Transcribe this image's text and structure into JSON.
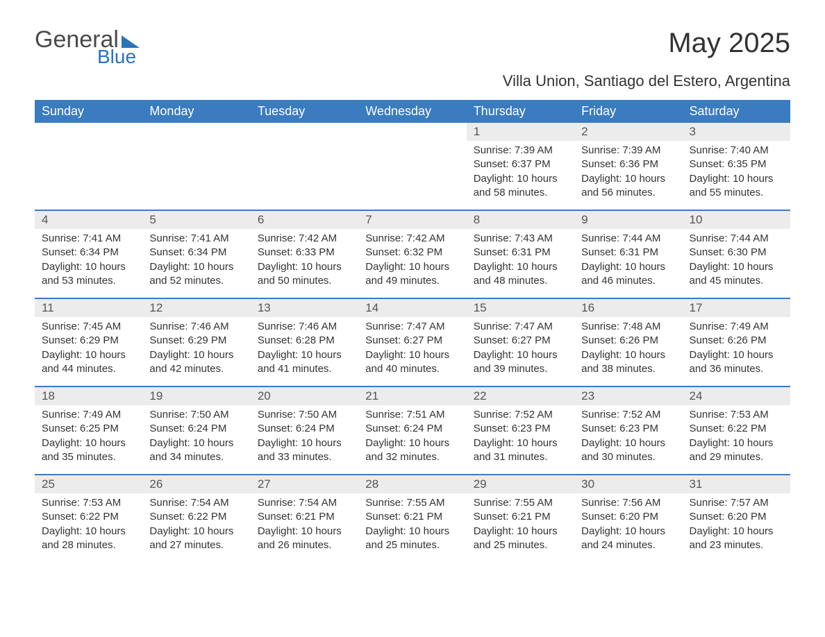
{
  "logo": {
    "word1": "General",
    "word2": "Blue"
  },
  "title": "May 2025",
  "subtitle": "Villa Union, Santiago del Estero, Argentina",
  "colors": {
    "header_bg": "#3b7bbf",
    "header_text": "#ffffff",
    "daynum_bg": "#ececec",
    "border_top": "#3b7bbf",
    "text": "#333333",
    "logo_blue": "#2a73b8",
    "logo_gray": "#4a4a4a",
    "page_bg": "#ffffff"
  },
  "weekdays": [
    "Sunday",
    "Monday",
    "Tuesday",
    "Wednesday",
    "Thursday",
    "Friday",
    "Saturday"
  ],
  "weeks": [
    [
      null,
      null,
      null,
      null,
      {
        "n": "1",
        "sr": "7:39 AM",
        "ss": "6:37 PM",
        "dl": "10 hours and 58 minutes."
      },
      {
        "n": "2",
        "sr": "7:39 AM",
        "ss": "6:36 PM",
        "dl": "10 hours and 56 minutes."
      },
      {
        "n": "3",
        "sr": "7:40 AM",
        "ss": "6:35 PM",
        "dl": "10 hours and 55 minutes."
      }
    ],
    [
      {
        "n": "4",
        "sr": "7:41 AM",
        "ss": "6:34 PM",
        "dl": "10 hours and 53 minutes."
      },
      {
        "n": "5",
        "sr": "7:41 AM",
        "ss": "6:34 PM",
        "dl": "10 hours and 52 minutes."
      },
      {
        "n": "6",
        "sr": "7:42 AM",
        "ss": "6:33 PM",
        "dl": "10 hours and 50 minutes."
      },
      {
        "n": "7",
        "sr": "7:42 AM",
        "ss": "6:32 PM",
        "dl": "10 hours and 49 minutes."
      },
      {
        "n": "8",
        "sr": "7:43 AM",
        "ss": "6:31 PM",
        "dl": "10 hours and 48 minutes."
      },
      {
        "n": "9",
        "sr": "7:44 AM",
        "ss": "6:31 PM",
        "dl": "10 hours and 46 minutes."
      },
      {
        "n": "10",
        "sr": "7:44 AM",
        "ss": "6:30 PM",
        "dl": "10 hours and 45 minutes."
      }
    ],
    [
      {
        "n": "11",
        "sr": "7:45 AM",
        "ss": "6:29 PM",
        "dl": "10 hours and 44 minutes."
      },
      {
        "n": "12",
        "sr": "7:46 AM",
        "ss": "6:29 PM",
        "dl": "10 hours and 42 minutes."
      },
      {
        "n": "13",
        "sr": "7:46 AM",
        "ss": "6:28 PM",
        "dl": "10 hours and 41 minutes."
      },
      {
        "n": "14",
        "sr": "7:47 AM",
        "ss": "6:27 PM",
        "dl": "10 hours and 40 minutes."
      },
      {
        "n": "15",
        "sr": "7:47 AM",
        "ss": "6:27 PM",
        "dl": "10 hours and 39 minutes."
      },
      {
        "n": "16",
        "sr": "7:48 AM",
        "ss": "6:26 PM",
        "dl": "10 hours and 38 minutes."
      },
      {
        "n": "17",
        "sr": "7:49 AM",
        "ss": "6:26 PM",
        "dl": "10 hours and 36 minutes."
      }
    ],
    [
      {
        "n": "18",
        "sr": "7:49 AM",
        "ss": "6:25 PM",
        "dl": "10 hours and 35 minutes."
      },
      {
        "n": "19",
        "sr": "7:50 AM",
        "ss": "6:24 PM",
        "dl": "10 hours and 34 minutes."
      },
      {
        "n": "20",
        "sr": "7:50 AM",
        "ss": "6:24 PM",
        "dl": "10 hours and 33 minutes."
      },
      {
        "n": "21",
        "sr": "7:51 AM",
        "ss": "6:24 PM",
        "dl": "10 hours and 32 minutes."
      },
      {
        "n": "22",
        "sr": "7:52 AM",
        "ss": "6:23 PM",
        "dl": "10 hours and 31 minutes."
      },
      {
        "n": "23",
        "sr": "7:52 AM",
        "ss": "6:23 PM",
        "dl": "10 hours and 30 minutes."
      },
      {
        "n": "24",
        "sr": "7:53 AM",
        "ss": "6:22 PM",
        "dl": "10 hours and 29 minutes."
      }
    ],
    [
      {
        "n": "25",
        "sr": "7:53 AM",
        "ss": "6:22 PM",
        "dl": "10 hours and 28 minutes."
      },
      {
        "n": "26",
        "sr": "7:54 AM",
        "ss": "6:22 PM",
        "dl": "10 hours and 27 minutes."
      },
      {
        "n": "27",
        "sr": "7:54 AM",
        "ss": "6:21 PM",
        "dl": "10 hours and 26 minutes."
      },
      {
        "n": "28",
        "sr": "7:55 AM",
        "ss": "6:21 PM",
        "dl": "10 hours and 25 minutes."
      },
      {
        "n": "29",
        "sr": "7:55 AM",
        "ss": "6:21 PM",
        "dl": "10 hours and 25 minutes."
      },
      {
        "n": "30",
        "sr": "7:56 AM",
        "ss": "6:20 PM",
        "dl": "10 hours and 24 minutes."
      },
      {
        "n": "31",
        "sr": "7:57 AM",
        "ss": "6:20 PM",
        "dl": "10 hours and 23 minutes."
      }
    ]
  ],
  "labels": {
    "sunrise": "Sunrise: ",
    "sunset": "Sunset: ",
    "daylight": "Daylight: "
  }
}
